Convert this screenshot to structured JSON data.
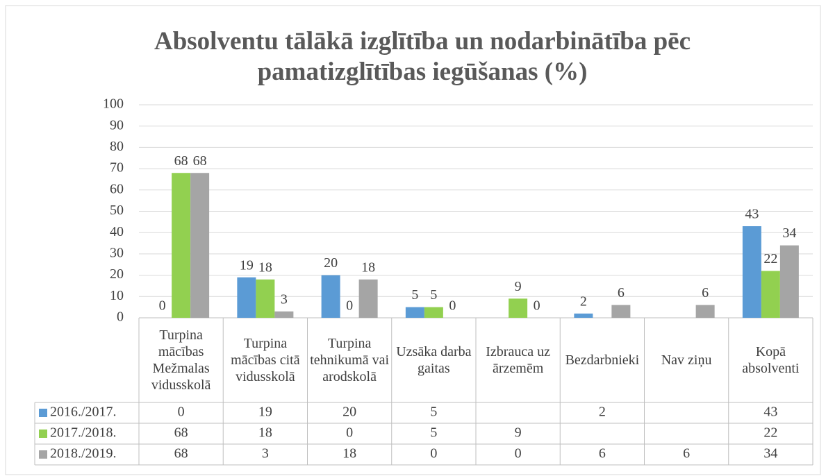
{
  "chart_data": {
    "type": "bar",
    "title": "Absolventu tālākā izglītība un nodarbinātība pēc pamatizglītības iegūšanas (%)",
    "categories": [
      "Turpina mācības Mežmalas vidusskolā",
      "Turpina mācības citā vidusskolā",
      "Turpina tehnikumā vai arodskolā",
      "Uzsāka darba gaitas",
      "Izbrauca uz ārzemēm",
      "Bezdarbnieki",
      "Nav ziņu",
      "Kopā absolventi"
    ],
    "series": [
      {
        "name": "2016./2017.",
        "color": "#5b9bd5",
        "values": [
          0,
          19,
          20,
          5,
          null,
          2,
          null,
          43
        ]
      },
      {
        "name": "2017./2018.",
        "color": "#92d050",
        "values": [
          68,
          18,
          0,
          5,
          9,
          null,
          null,
          22
        ]
      },
      {
        "name": "2018./2019.",
        "color": "#a5a5a5",
        "values": [
          68,
          3,
          18,
          0,
          0,
          6,
          6,
          34
        ]
      }
    ],
    "ylim": [
      0,
      100
    ],
    "yticks": [
      0,
      10,
      20,
      30,
      40,
      50,
      60,
      70,
      80,
      90,
      100
    ],
    "grid": true
  }
}
